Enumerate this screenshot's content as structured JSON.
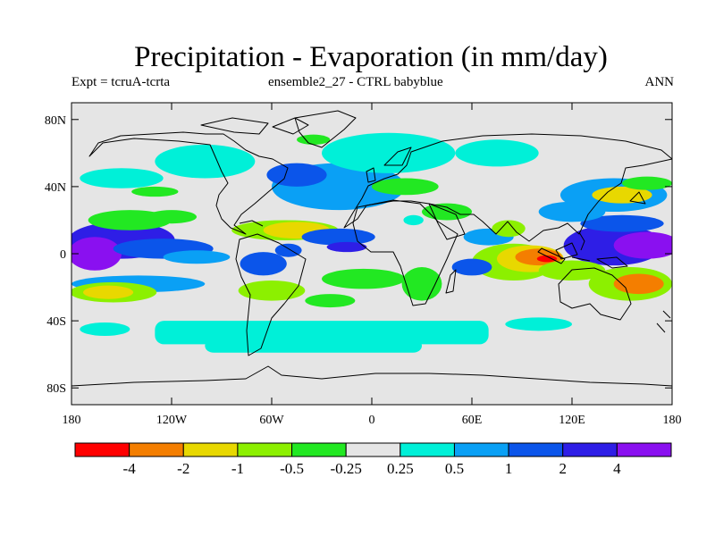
{
  "chart_data": {
    "type": "heatmap",
    "title": "Precipitation - Evaporation (in mm/day)",
    "subtitle_left": "Expt = tcruA-tcrta",
    "subtitle_center": "ensemble2_27 - CTRL babyblue",
    "subtitle_right": "ANN",
    "x_ticks": [
      "180",
      "120W",
      "60W",
      "0",
      "60E",
      "120E",
      "180"
    ],
    "y_ticks": [
      "80N",
      "40N",
      "0",
      "40S",
      "80S"
    ],
    "xlim": [
      -180,
      180
    ],
    "ylim": [
      -90,
      90
    ],
    "colorbar": {
      "colors": [
        "#ff0000",
        "#f47e00",
        "#e8d800",
        "#8cf000",
        "#22e822",
        "#e5e5e5",
        "#00f0d8",
        "#0aa0f5",
        "#0b55ea",
        "#2e1ee6",
        "#8a10f0"
      ],
      "labels": [
        "-4",
        "-2",
        "-1",
        "-0.5",
        "-0.25",
        "0.25",
        "0.5",
        "1",
        "2",
        "4"
      ]
    },
    "fields": [
      {
        "shape": "ellipse",
        "lon": -150,
        "lat": 8,
        "rlon": 32,
        "rlat": 11,
        "value": 2.6
      },
      {
        "shape": "ellipse",
        "lon": -166,
        "lat": 0,
        "rlon": 16,
        "rlat": 10,
        "value": 4.5
      },
      {
        "shape": "ellipse",
        "lon": -125,
        "lat": 3,
        "rlon": 30,
        "rlat": 6,
        "value": 1.5
      },
      {
        "shape": "ellipse",
        "lon": -140,
        "lat": -18,
        "rlon": 40,
        "rlat": 5,
        "value": 0.7
      },
      {
        "shape": "ellipse",
        "lon": -105,
        "lat": -2,
        "rlon": 20,
        "rlat": 4,
        "value": 0.7
      },
      {
        "shape": "ellipse",
        "lon": -155,
        "lat": -23,
        "rlon": 26,
        "rlat": 6,
        "value": -0.6
      },
      {
        "shape": "ellipse",
        "lon": -158,
        "lat": -23,
        "rlon": 15,
        "rlat": 4,
        "value": -1.6
      },
      {
        "shape": "ellipse",
        "lon": -145,
        "lat": 20,
        "rlon": 25,
        "rlat": 6,
        "value": -0.4
      },
      {
        "shape": "ellipse",
        "lon": -120,
        "lat": 22,
        "rlon": 15,
        "rlat": 4,
        "value": -0.4
      },
      {
        "shape": "ellipse",
        "lon": -52,
        "lat": 14,
        "rlon": 32,
        "rlat": 6,
        "value": -0.7
      },
      {
        "shape": "ellipse",
        "lon": -45,
        "lat": 14,
        "rlon": 20,
        "rlat": 5,
        "value": -1.6
      },
      {
        "shape": "ellipse",
        "lon": -20,
        "lat": 10,
        "rlon": 22,
        "rlat": 5,
        "value": 1.5
      },
      {
        "shape": "ellipse",
        "lon": -15,
        "lat": 4,
        "rlon": 12,
        "rlat": 3,
        "value": 2.5
      },
      {
        "shape": "ellipse",
        "lon": -65,
        "lat": -6,
        "rlon": 14,
        "rlat": 7,
        "value": 1.2
      },
      {
        "shape": "ellipse",
        "lon": -50,
        "lat": 2,
        "rlon": 8,
        "rlat": 4,
        "value": 1.5
      },
      {
        "shape": "ellipse",
        "lon": -60,
        "lat": -22,
        "rlon": 20,
        "rlat": 6,
        "value": -0.6
      },
      {
        "shape": "ellipse",
        "lon": -5,
        "lat": -15,
        "rlon": 25,
        "rlat": 6,
        "value": -0.4
      },
      {
        "shape": "ellipse",
        "lon": -25,
        "lat": -28,
        "rlon": 15,
        "rlat": 4,
        "value": -0.4
      },
      {
        "shape": "ellipse",
        "lon": -20,
        "lat": 40,
        "rlon": 40,
        "rlat": 14,
        "value": 0.8
      },
      {
        "shape": "ellipse",
        "lon": -45,
        "lat": 47,
        "rlon": 18,
        "rlat": 7,
        "value": 1.3
      },
      {
        "shape": "ellipse",
        "lon": 10,
        "lat": 60,
        "rlon": 40,
        "rlat": 12,
        "value": 0.4
      },
      {
        "shape": "ellipse",
        "lon": -100,
        "lat": 55,
        "rlon": 30,
        "rlat": 10,
        "value": 0.4
      },
      {
        "shape": "ellipse",
        "lon": -150,
        "lat": 45,
        "rlon": 25,
        "rlat": 6,
        "value": 0.35
      },
      {
        "shape": "ellipse",
        "lon": 75,
        "lat": 60,
        "rlon": 25,
        "rlat": 8,
        "value": 0.35
      },
      {
        "shape": "ellipse",
        "lon": -35,
        "lat": 68,
        "rlon": 10,
        "rlat": 3,
        "value": -0.4
      },
      {
        "shape": "ellipse",
        "lon": 20,
        "lat": 40,
        "rlon": 20,
        "rlat": 5,
        "value": -0.4
      },
      {
        "shape": "ellipse",
        "lon": -130,
        "lat": 37,
        "rlon": 14,
        "rlat": 3,
        "value": -0.4
      },
      {
        "shape": "ellipse",
        "lon": 85,
        "lat": -5,
        "rlon": 25,
        "rlat": 11,
        "value": -0.6
      },
      {
        "shape": "ellipse",
        "lon": 95,
        "lat": -3,
        "rlon": 20,
        "rlat": 8,
        "value": -1.5
      },
      {
        "shape": "ellipse",
        "lon": 100,
        "lat": -2,
        "rlon": 14,
        "rlat": 5,
        "value": -2.5
      },
      {
        "shape": "ellipse",
        "lon": 105,
        "lat": -3,
        "rlon": 6,
        "rlat": 2,
        "value": -4.5
      },
      {
        "shape": "ellipse",
        "lon": 60,
        "lat": -8,
        "rlon": 12,
        "rlat": 5,
        "value": 1.2
      },
      {
        "shape": "ellipse",
        "lon": 70,
        "lat": 10,
        "rlon": 15,
        "rlat": 5,
        "value": 0.8
      },
      {
        "shape": "ellipse",
        "lon": 82,
        "lat": 15,
        "rlon": 10,
        "rlat": 5,
        "value": -0.7
      },
      {
        "shape": "ellipse",
        "lon": 145,
        "lat": 5,
        "rlon": 30,
        "rlat": 12,
        "value": 2.6
      },
      {
        "shape": "ellipse",
        "lon": 165,
        "lat": 5,
        "rlon": 20,
        "rlat": 8,
        "value": 4.5
      },
      {
        "shape": "ellipse",
        "lon": 150,
        "lat": 18,
        "rlon": 25,
        "rlat": 5,
        "value": 1.2
      },
      {
        "shape": "ellipse",
        "lon": 120,
        "lat": 25,
        "rlon": 20,
        "rlat": 6,
        "value": 0.7
      },
      {
        "shape": "ellipse",
        "lon": 145,
        "lat": 35,
        "rlon": 32,
        "rlat": 10,
        "value": 0.8
      },
      {
        "shape": "ellipse",
        "lon": 150,
        "lat": 35,
        "rlon": 18,
        "rlat": 5,
        "value": -1.5
      },
      {
        "shape": "ellipse",
        "lon": 165,
        "lat": 42,
        "rlon": 15,
        "rlat": 4,
        "value": -0.4
      },
      {
        "shape": "ellipse",
        "lon": 155,
        "lat": -18,
        "rlon": 25,
        "rlat": 10,
        "value": -0.8
      },
      {
        "shape": "ellipse",
        "lon": 160,
        "lat": -18,
        "rlon": 15,
        "rlat": 6,
        "value": -2.5
      },
      {
        "shape": "ellipse",
        "lon": 120,
        "lat": -10,
        "rlon": 20,
        "rlat": 6,
        "value": -0.8
      },
      {
        "shape": "ellipse",
        "lon": 45,
        "lat": 25,
        "rlon": 15,
        "rlat": 5,
        "value": -0.4
      },
      {
        "shape": "ellipse",
        "lon": 30,
        "lat": -18,
        "rlon": 12,
        "rlat": 10,
        "value": -0.4
      },
      {
        "shape": "ellipse",
        "lon": 25,
        "lat": 20,
        "rlon": 6,
        "rlat": 3,
        "value": 0.35
      },
      {
        "shape": "band",
        "lat": -47,
        "half": 7,
        "lon0": -130,
        "lon1": 70,
        "value": 0.35
      },
      {
        "shape": "band",
        "lat": -55,
        "half": 4,
        "lon0": -100,
        "lon1": 30,
        "value": 0.35
      },
      {
        "shape": "ellipse",
        "lon": 100,
        "lat": -42,
        "rlon": 20,
        "rlat": 4,
        "value": 0.35
      },
      {
        "shape": "ellipse",
        "lon": -160,
        "lat": -45,
        "rlon": 15,
        "rlat": 4,
        "value": 0.35
      }
    ]
  }
}
